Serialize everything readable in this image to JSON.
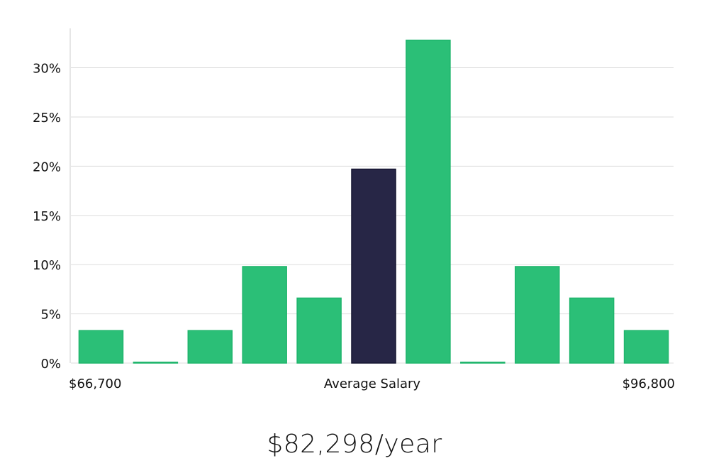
{
  "headline": "$82,298/year",
  "chart_data": {
    "type": "bar",
    "x_start_label": "$66,700",
    "x_center_label": "Average Salary",
    "x_end_label": "$96,800",
    "values": [
      3.3,
      0,
      3.3,
      9.8,
      6.6,
      19.7,
      32.8,
      0,
      9.8,
      6.6,
      3.3
    ],
    "highlight_index": 5,
    "yticks": [
      "0%",
      "5%",
      "10%",
      "15%",
      "20%",
      "25%",
      "30%"
    ],
    "ylim": [
      0,
      34
    ],
    "grid": true,
    "colors": {
      "bar": "#2bbf77",
      "bar_stroke": "#1fb56c",
      "highlight": "#272646",
      "grid": "#dddddd",
      "axis": "#cccccc"
    }
  }
}
